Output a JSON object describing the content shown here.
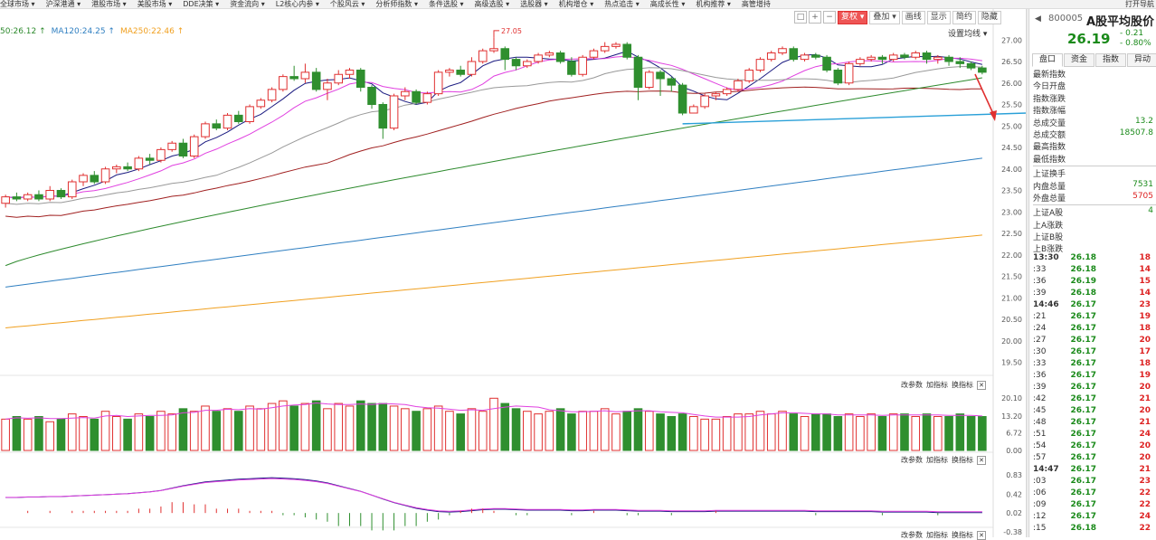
{
  "topnav": {
    "items": [
      "全球市场",
      "沪深港通",
      "港股市场",
      "美股市场",
      "DDE决策",
      "资金流向",
      "L2核心内参",
      "个股风云",
      "分析师指数",
      "条件选股",
      "高级选股",
      "选股器",
      "机构增仓",
      "热点追击",
      "高成长性",
      "机构推荐",
      "高管增持"
    ],
    "right": "打开导航"
  },
  "toolbar": {
    "icons": [
      "□",
      "+",
      "−"
    ],
    "buttons": [
      "复权",
      "叠加",
      "画线",
      "显示",
      "简约",
      "隐藏"
    ],
    "active": "复权"
  },
  "ma_legend": [
    {
      "text": "50:26.12 ↑",
      "color": "#2d8a2d"
    },
    {
      "text": "MA120:24.25 ↑",
      "color": "#2f7fc1"
    },
    {
      "text": "MA250:22.46 ↑",
      "color": "#f0a020"
    }
  ],
  "setting_label": "设置均线 ▾",
  "price_annotation": "27.05",
  "price_axis": [
    "27.00",
    "26.50",
    "26.00",
    "25.50",
    "25.00",
    "24.50",
    "24.00",
    "23.50",
    "23.00",
    "22.50",
    "22.00",
    "21.50",
    "21.00",
    "20.50",
    "20.00",
    "19.50"
  ],
  "volume_axis": [
    "20.10",
    "13.20",
    "6.72",
    "0.00"
  ],
  "macd_axis": [
    "0.83",
    "0.42",
    "0.02",
    "-0.38"
  ],
  "panel_controls": {
    "a": "改参数",
    "b": "加指标",
    "c": "换指标"
  },
  "stock": {
    "code": "800005",
    "name": "A股平均股价",
    "price": "26.19",
    "change": "- 0.21",
    "change_pct": "- 0.80%"
  },
  "side_tabs": [
    "盘口",
    "资金",
    "指数",
    "异动"
  ],
  "quote_rows": [
    {
      "label": "最新指数",
      "value": ""
    },
    {
      "label": "今日开盘",
      "value": ""
    },
    {
      "label": "指数涨跌",
      "value": ""
    },
    {
      "label": "指数涨幅",
      "value": ""
    },
    {
      "label": "总成交量",
      "value": "13.2"
    },
    {
      "label": "总成交额",
      "value": "18507.8"
    },
    {
      "label": "最高指数",
      "value": ""
    },
    {
      "label": "最低指数",
      "value": ""
    },
    {
      "label": "上证换手",
      "value": ""
    },
    {
      "label": "内盘总量",
      "value": "7531"
    },
    {
      "label": "外盘总量",
      "value": "5705"
    },
    {
      "label": "上证A股",
      "value": "4"
    },
    {
      "label": "上A涨跌",
      "value": ""
    },
    {
      "label": "上证B股",
      "value": ""
    },
    {
      "label": "上B涨跌",
      "value": ""
    }
  ],
  "ticks": [
    {
      "t": "13:30",
      "p": "26.18",
      "v": "18"
    },
    {
      "t": ":33",
      "p": "26.18",
      "v": "14"
    },
    {
      "t": ":36",
      "p": "26.19",
      "v": "15"
    },
    {
      "t": ":39",
      "p": "26.18",
      "v": "14"
    },
    {
      "t": "14:46",
      "p": "26.17",
      "v": "23"
    },
    {
      "t": ":21",
      "p": "26.17",
      "v": "19"
    },
    {
      "t": ":24",
      "p": "26.17",
      "v": "18"
    },
    {
      "t": ":27",
      "p": "26.17",
      "v": "20"
    },
    {
      "t": ":30",
      "p": "26.17",
      "v": "17"
    },
    {
      "t": ":33",
      "p": "26.17",
      "v": "18"
    },
    {
      "t": ":36",
      "p": "26.17",
      "v": "19"
    },
    {
      "t": ":39",
      "p": "26.17",
      "v": "20"
    },
    {
      "t": ":42",
      "p": "26.17",
      "v": "21"
    },
    {
      "t": ":45",
      "p": "26.17",
      "v": "20"
    },
    {
      "t": ":48",
      "p": "26.17",
      "v": "21"
    },
    {
      "t": ":51",
      "p": "26.17",
      "v": "24"
    },
    {
      "t": ":54",
      "p": "26.17",
      "v": "20"
    },
    {
      "t": ":57",
      "p": "26.17",
      "v": "20"
    },
    {
      "t": "14:47",
      "p": "26.17",
      "v": "21"
    },
    {
      "t": ":03",
      "p": "26.17",
      "v": "23"
    },
    {
      "t": ":06",
      "p": "26.17",
      "v": "22"
    },
    {
      "t": ":09",
      "p": "26.17",
      "v": "22"
    },
    {
      "t": ":12",
      "p": "26.17",
      "v": "24"
    },
    {
      "t": ":15",
      "p": "26.18",
      "v": "22"
    }
  ],
  "colors": {
    "up": "#e03030",
    "down": "#2f8f2f",
    "ma5": "#1a1a80",
    "ma10": "#e040e0",
    "ma20": "#999999",
    "ma30": "#a02020",
    "ma60": "#2d8a2d",
    "ma120": "#2f7fc1",
    "ma250": "#f0a020",
    "annot": "#e03030",
    "line": "#2aa0d8"
  },
  "chart_data": {
    "type": "candlestick",
    "ylim": [
      19.3,
      27.3
    ],
    "candles": [
      [
        23.2,
        23.35,
        23.4,
        23.1
      ],
      [
        23.35,
        23.3,
        23.45,
        23.25
      ],
      [
        23.3,
        23.4,
        23.45,
        23.25
      ],
      [
        23.4,
        23.3,
        23.5,
        23.25
      ],
      [
        23.3,
        23.5,
        23.6,
        23.25
      ],
      [
        23.5,
        23.35,
        23.55,
        23.3
      ],
      [
        23.35,
        23.7,
        23.75,
        23.3
      ],
      [
        23.7,
        23.85,
        23.9,
        23.6
      ],
      [
        23.85,
        23.7,
        23.95,
        23.65
      ],
      [
        23.7,
        24.0,
        24.05,
        23.65
      ],
      [
        24.0,
        24.05,
        24.1,
        23.9
      ],
      [
        24.05,
        24.0,
        24.15,
        23.95
      ],
      [
        24.0,
        24.25,
        24.3,
        23.95
      ],
      [
        24.25,
        24.2,
        24.35,
        24.1
      ],
      [
        24.2,
        24.45,
        24.5,
        24.15
      ],
      [
        24.45,
        24.6,
        24.65,
        24.4
      ],
      [
        24.6,
        24.3,
        24.7,
        24.25
      ],
      [
        24.3,
        24.75,
        24.8,
        24.25
      ],
      [
        24.75,
        25.05,
        25.1,
        24.7
      ],
      [
        25.05,
        24.95,
        25.15,
        24.9
      ],
      [
        24.95,
        25.25,
        25.3,
        24.9
      ],
      [
        25.25,
        25.1,
        25.35,
        25.05
      ],
      [
        25.1,
        25.45,
        25.5,
        25.05
      ],
      [
        25.45,
        25.6,
        25.65,
        25.4
      ],
      [
        25.6,
        25.85,
        25.9,
        25.55
      ],
      [
        25.85,
        26.15,
        26.2,
        25.8
      ],
      [
        26.15,
        26.1,
        26.4,
        26.05
      ],
      [
        26.1,
        26.25,
        26.45,
        26.0
      ],
      [
        26.25,
        25.85,
        26.35,
        25.8
      ],
      [
        25.85,
        26.0,
        26.1,
        25.6
      ],
      [
        26.0,
        26.2,
        26.3,
        25.95
      ],
      [
        26.2,
        26.3,
        26.35,
        26.1
      ],
      [
        26.3,
        25.9,
        26.35,
        25.8
      ],
      [
        25.9,
        25.5,
        25.95,
        25.4
      ],
      [
        25.5,
        24.95,
        25.55,
        24.7
      ],
      [
        24.95,
        25.7,
        25.75,
        24.9
      ],
      [
        25.7,
        25.8,
        25.9,
        25.6
      ],
      [
        25.8,
        25.55,
        25.85,
        25.5
      ],
      [
        25.55,
        25.75,
        25.8,
        25.5
      ],
      [
        25.75,
        26.25,
        26.3,
        25.7
      ],
      [
        26.25,
        26.3,
        26.35,
        26.15
      ],
      [
        26.3,
        26.2,
        26.4,
        26.15
      ],
      [
        26.2,
        26.5,
        26.6,
        26.15
      ],
      [
        26.5,
        26.75,
        26.8,
        26.45
      ],
      [
        26.75,
        26.8,
        27.05,
        26.7
      ],
      [
        26.8,
        26.55,
        26.85,
        26.3
      ],
      [
        26.55,
        26.4,
        26.6,
        26.3
      ],
      [
        26.4,
        26.5,
        26.55,
        26.35
      ],
      [
        26.5,
        26.65,
        26.7,
        26.45
      ],
      [
        26.65,
        26.7,
        26.75,
        26.6
      ],
      [
        26.7,
        26.5,
        26.75,
        26.45
      ],
      [
        26.5,
        26.2,
        26.6,
        26.15
      ],
      [
        26.2,
        26.6,
        26.65,
        26.15
      ],
      [
        26.6,
        26.75,
        26.8,
        26.55
      ],
      [
        26.75,
        26.85,
        26.95,
        26.7
      ],
      [
        26.85,
        26.9,
        26.95,
        26.8
      ],
      [
        26.9,
        26.6,
        26.95,
        26.55
      ],
      [
        26.6,
        25.9,
        26.65,
        25.6
      ],
      [
        25.9,
        26.25,
        26.3,
        25.85
      ],
      [
        26.25,
        26.1,
        26.3,
        25.7
      ],
      [
        26.1,
        25.95,
        26.15,
        25.8
      ],
      [
        25.95,
        25.3,
        26.0,
        25.25
      ],
      [
        25.3,
        25.45,
        25.5,
        25.3
      ],
      [
        25.45,
        25.7,
        25.75,
        25.4
      ],
      [
        25.7,
        25.75,
        25.8,
        25.6
      ],
      [
        25.75,
        25.85,
        25.9,
        25.7
      ],
      [
        25.85,
        26.05,
        26.1,
        25.8
      ],
      [
        26.05,
        26.3,
        26.35,
        26.0
      ],
      [
        26.3,
        26.55,
        26.6,
        26.25
      ],
      [
        26.55,
        26.7,
        26.75,
        26.5
      ],
      [
        26.7,
        26.8,
        26.85,
        26.65
      ],
      [
        26.8,
        26.55,
        26.85,
        26.5
      ],
      [
        26.55,
        26.65,
        26.7,
        26.5
      ],
      [
        26.65,
        26.6,
        26.7,
        26.55
      ],
      [
        26.6,
        26.3,
        26.65,
        26.25
      ],
      [
        26.3,
        26.0,
        26.35,
        25.95
      ],
      [
        26.0,
        26.45,
        26.5,
        25.95
      ],
      [
        26.45,
        26.55,
        26.6,
        26.4
      ],
      [
        26.55,
        26.6,
        26.65,
        26.5
      ],
      [
        26.6,
        26.55,
        26.65,
        26.45
      ],
      [
        26.55,
        26.65,
        26.7,
        26.5
      ],
      [
        26.65,
        26.6,
        26.7,
        26.55
      ],
      [
        26.6,
        26.7,
        26.75,
        26.55
      ],
      [
        26.7,
        26.55,
        26.75,
        26.45
      ],
      [
        26.55,
        26.6,
        26.65,
        26.45
      ],
      [
        26.6,
        26.5,
        26.65,
        26.4
      ],
      [
        26.5,
        26.45,
        26.6,
        26.35
      ],
      [
        26.45,
        26.35,
        26.5,
        26.3
      ],
      [
        26.35,
        26.25,
        26.4,
        26.2
      ]
    ],
    "volume": [
      12,
      13,
      12,
      13,
      11,
      12,
      14,
      13,
      12,
      15,
      13,
      12,
      14,
      13,
      15,
      14,
      16,
      15,
      17,
      15,
      16,
      15,
      17,
      16,
      18,
      19,
      17,
      18,
      19,
      16,
      18,
      17,
      19,
      18,
      18,
      17,
      16,
      15,
      16,
      17,
      15,
      14,
      16,
      15,
      20,
      18,
      16,
      15,
      14,
      15,
      16,
      14,
      15,
      15,
      16,
      14,
      15,
      16,
      15,
      14,
      13,
      14,
      13,
      12,
      12,
      13,
      14,
      14,
      15,
      14,
      15,
      14,
      13,
      14,
      14,
      13,
      14,
      13,
      14,
      13,
      14,
      14,
      13,
      14,
      13,
      13,
      14,
      13,
      13
    ],
    "macd": [
      0.35,
      0.35,
      0.36,
      0.36,
      0.37,
      0.37,
      0.38,
      0.39,
      0.4,
      0.41,
      0.42,
      0.43,
      0.45,
      0.47,
      0.5,
      0.55,
      0.6,
      0.64,
      0.68,
      0.7,
      0.72,
      0.74,
      0.75,
      0.76,
      0.77,
      0.76,
      0.75,
      0.73,
      0.7,
      0.66,
      0.6,
      0.54,
      0.48,
      0.4,
      0.32,
      0.24,
      0.18,
      0.12,
      0.08,
      0.05,
      0.04,
      0.05,
      0.07,
      0.09,
      0.1,
      0.1,
      0.09,
      0.08,
      0.08,
      0.08,
      0.08,
      0.07,
      0.07,
      0.08,
      0.08,
      0.08,
      0.07,
      0.06,
      0.06,
      0.06,
      0.05,
      0.05,
      0.05,
      0.05,
      0.06,
      0.06,
      0.06,
      0.06,
      0.06,
      0.06,
      0.06,
      0.06,
      0.06,
      0.05,
      0.05,
      0.05,
      0.05,
      0.05,
      0.05,
      0.04,
      0.04,
      0.04,
      0.04,
      0.04,
      0.03,
      0.03,
      0.03,
      0.03,
      0.03
    ]
  }
}
